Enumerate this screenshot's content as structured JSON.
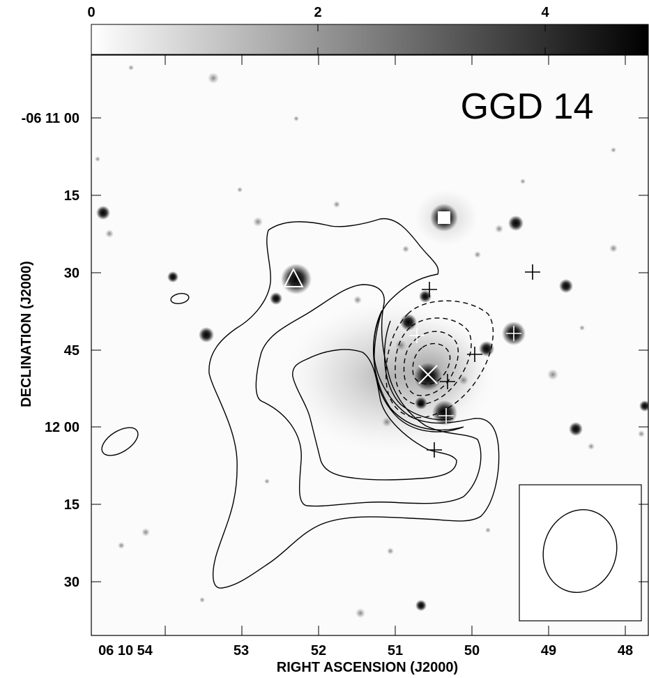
{
  "figure": {
    "title": "GGD 14",
    "xlabel": "RIGHT ASCENSION (J2000)",
    "ylabel": "DECLINATION (J2000)",
    "colorbar": {
      "ticks": [
        "0",
        "2",
        "4"
      ],
      "cmap": "grayscale",
      "min_color": "#ffffff",
      "max_color": "#000000"
    },
    "x_ticks": [
      "06 10 54",
      "53",
      "52",
      "51",
      "50",
      "49",
      "48"
    ],
    "y_ticks": [
      "-06 11 00",
      "15",
      "30",
      "45",
      "12 00",
      "15",
      "30"
    ],
    "markers": {
      "triangle": "triangle-marker",
      "x_mark": "x-marker",
      "plus": "plus-marker"
    }
  }
}
